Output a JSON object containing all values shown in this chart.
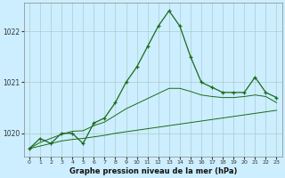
{
  "title": "Graphe pression niveau de la mer (hPa)",
  "background_color": "#cceeff",
  "grid_color": "#bbdddd",
  "line_color": "#1a6b1a",
  "x_labels": [
    "0",
    "1",
    "2",
    "3",
    "4",
    "5",
    "6",
    "7",
    "8",
    "9",
    "10",
    "11",
    "12",
    "13",
    "14",
    "15",
    "16",
    "17",
    "18",
    "19",
    "20",
    "21",
    "22",
    "23"
  ],
  "main_line": [
    1019.7,
    1019.9,
    1019.8,
    1020.0,
    1020.0,
    1019.8,
    1020.2,
    1020.3,
    1020.6,
    1021.0,
    1021.3,
    1021.7,
    1022.1,
    1022.4,
    1022.1,
    1021.5,
    1021.0,
    1020.9,
    1020.8,
    1020.8,
    1020.8,
    1021.1,
    1020.8,
    1020.7
  ],
  "low_line": [
    1019.7,
    1019.75,
    1019.8,
    1019.85,
    1019.88,
    1019.9,
    1019.93,
    1019.96,
    1020.0,
    1020.03,
    1020.06,
    1020.09,
    1020.12,
    1020.15,
    1020.18,
    1020.21,
    1020.24,
    1020.27,
    1020.3,
    1020.33,
    1020.36,
    1020.39,
    1020.42,
    1020.45
  ],
  "high_line": [
    1019.7,
    1019.82,
    1019.9,
    1019.98,
    1020.04,
    1020.05,
    1020.15,
    1020.22,
    1020.35,
    1020.48,
    1020.58,
    1020.68,
    1020.78,
    1020.88,
    1020.88,
    1020.82,
    1020.75,
    1020.72,
    1020.7,
    1020.7,
    1020.72,
    1020.75,
    1020.72,
    1020.6
  ],
  "ylim": [
    1019.55,
    1022.55
  ],
  "yticks": [
    1020,
    1021,
    1022
  ],
  "xlim": [
    -0.5,
    23.5
  ]
}
